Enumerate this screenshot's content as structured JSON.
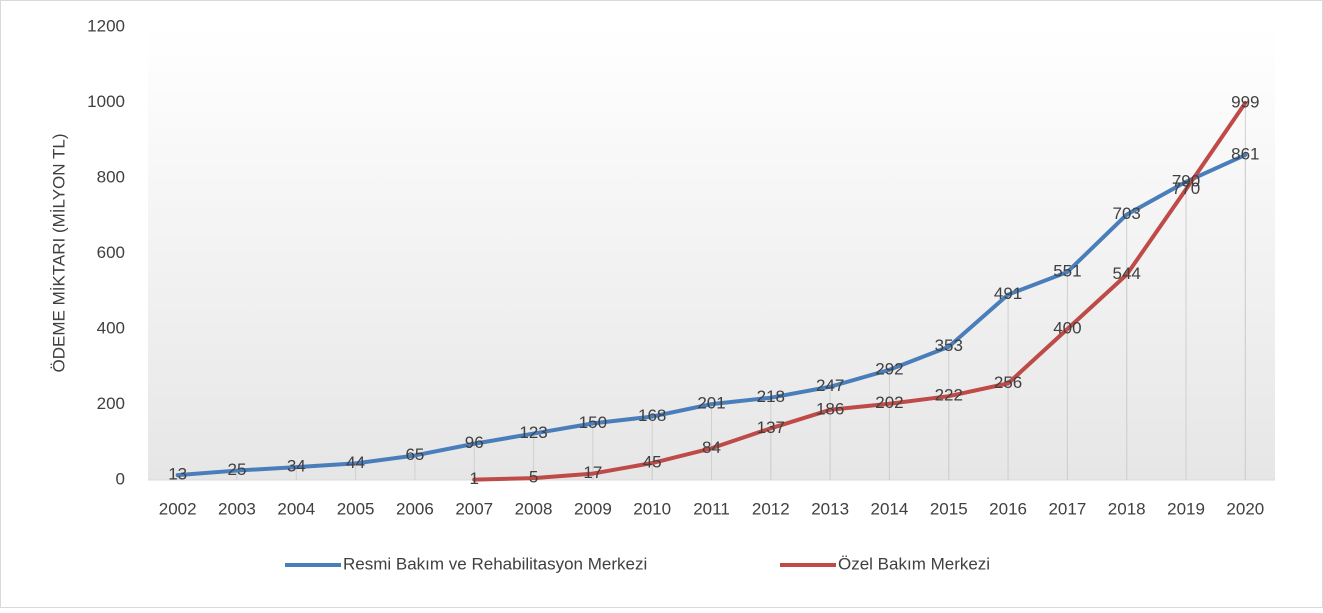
{
  "chart_data": {
    "type": "line",
    "y_label": "ÖDEME MİKTARI (MİLYON TL)",
    "categories": [
      "2002",
      "2003",
      "2004",
      "2005",
      "2006",
      "2007",
      "2008",
      "2009",
      "2010",
      "2011",
      "2012",
      "2013",
      "2014",
      "2015",
      "2016",
      "2017",
      "2018",
      "2019",
      "2020"
    ],
    "series": [
      {
        "name": "Resmi Bakım ve Rehabilitasyon Merkezi",
        "color": "#4a7ebb",
        "values": [
          13,
          25,
          34,
          44,
          65,
          96,
          123,
          150,
          168,
          201,
          218,
          247,
          292,
          353,
          491,
          551,
          703,
          790,
          861
        ]
      },
      {
        "name": "Özel Bakım Merkezi",
        "color": "#be4b48",
        "values": [
          null,
          null,
          null,
          null,
          null,
          1,
          5,
          17,
          45,
          84,
          137,
          186,
          202,
          222,
          256,
          400,
          544,
          770,
          999
        ]
      }
    ],
    "ylim": [
      0,
      1200
    ],
    "yticks": [
      0,
      200,
      400,
      600,
      800,
      1000,
      1200
    ],
    "legend": "bottom",
    "data_labels": true,
    "drop_lines": true
  }
}
